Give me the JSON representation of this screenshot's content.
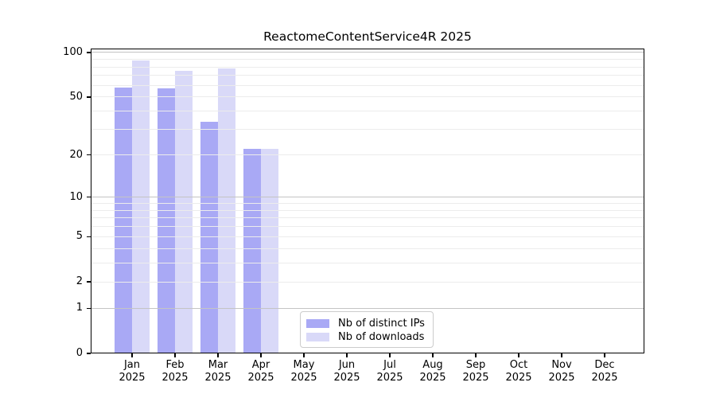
{
  "title": "ReactomeContentService4R 2025",
  "chart_data": {
    "type": "bar",
    "title": "ReactomeContentService4R 2025",
    "y_scale": "log10(1+x)",
    "categories": [
      "Jan",
      "Feb",
      "Mar",
      "Apr",
      "May",
      "Jun",
      "Jul",
      "Aug",
      "Sep",
      "Oct",
      "Nov",
      "Dec"
    ],
    "category_year": "2025",
    "series": [
      {
        "name": "Nb of distinct IPs",
        "color": "#a9a9f5",
        "values": [
          58,
          57,
          34,
          22,
          0,
          0,
          0,
          0,
          0,
          0,
          0,
          0
        ]
      },
      {
        "name": "Nb of downloads",
        "color": "#d9d9f8",
        "values": [
          88,
          75,
          78,
          22,
          0,
          0,
          0,
          0,
          0,
          0,
          0,
          0
        ]
      }
    ],
    "ylim": [
      0,
      106.3
    ],
    "y_ticks": [
      0,
      1,
      2,
      5,
      10,
      20,
      50,
      100
    ],
    "y_major_gridlines": [
      1,
      10,
      100
    ],
    "y_minor_gridlines": [
      2,
      3,
      4,
      5,
      6,
      7,
      8,
      9,
      20,
      30,
      40,
      50,
      60,
      70,
      80,
      90
    ],
    "grid": true,
    "legend_position": "lower center"
  },
  "colors": {
    "major_grid": "#c4c4c4",
    "minor_grid": "#ececec",
    "spine": "#000000",
    "background": "#ffffff"
  }
}
